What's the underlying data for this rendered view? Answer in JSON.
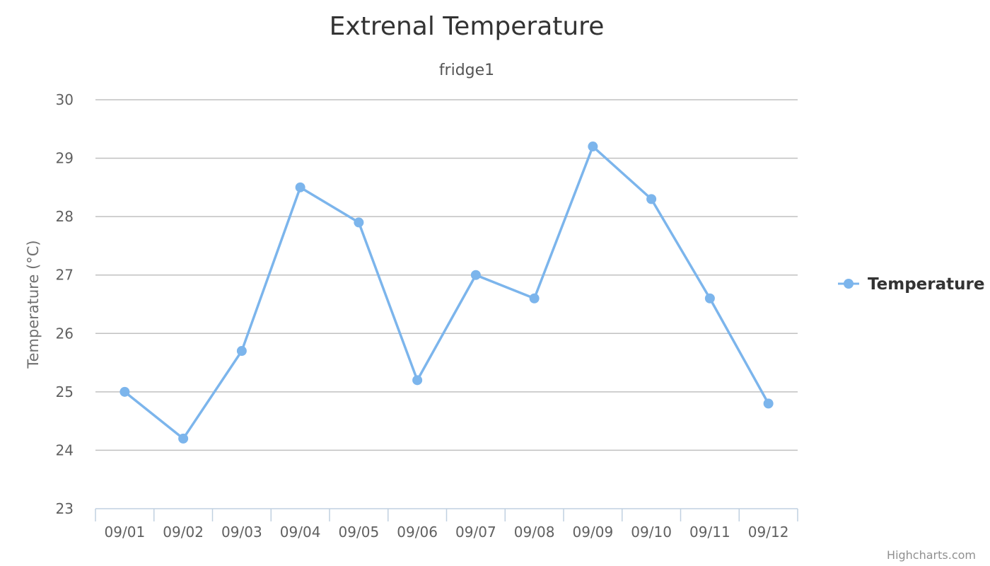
{
  "chart_data": {
    "type": "line",
    "title": "Extrenal Temperature",
    "subtitle": "fridge1",
    "ylabel": "Temperature (°C)",
    "xlabel": "",
    "categories": [
      "09/01",
      "09/02",
      "09/03",
      "09/04",
      "09/05",
      "09/06",
      "09/07",
      "09/08",
      "09/09",
      "09/10",
      "09/11",
      "09/12"
    ],
    "ylim": [
      23,
      30
    ],
    "yticks": [
      23,
      24,
      25,
      26,
      27,
      28,
      29,
      30
    ],
    "series": [
      {
        "name": "Temperature",
        "color": "#7cb5ec",
        "values": [
          25.0,
          24.2,
          25.7,
          28.5,
          27.9,
          25.2,
          27.0,
          26.6,
          29.2,
          28.3,
          26.6,
          24.8
        ]
      }
    ],
    "grid": true,
    "legend_position": "right",
    "credits": "Highcharts.com"
  }
}
